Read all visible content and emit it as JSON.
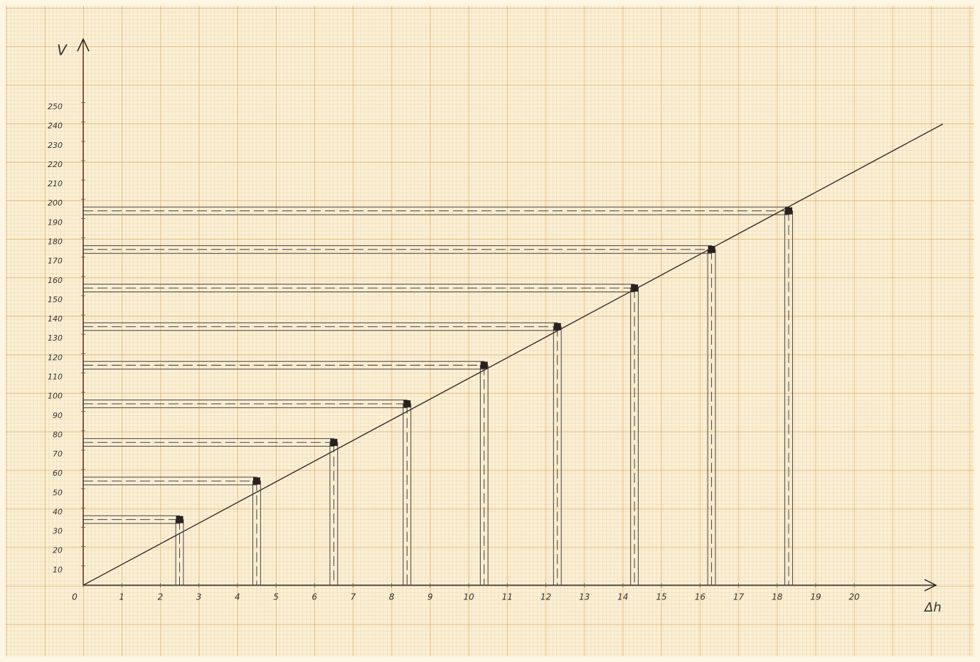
{
  "chart_data": {
    "type": "scatter",
    "x_label": "Δh",
    "y_label": "V",
    "x": [
      2.5,
      4.5,
      6.5,
      8.4,
      10.4,
      12.3,
      14.3,
      16.3,
      18.3
    ],
    "values": [
      34,
      54,
      74,
      94,
      114,
      134,
      154,
      174,
      194
    ],
    "x_error": 0.1,
    "y_error": 2,
    "fit_line": {
      "x": [
        0,
        22.3
      ],
      "values": [
        0,
        239
      ]
    },
    "color": "#2a2020",
    "xlim": [
      0,
      22.1
    ],
    "ylim": [
      0,
      283
    ],
    "xticks": [
      0,
      1,
      2,
      3,
      4,
      5,
      6,
      7,
      8,
      9,
      10,
      11,
      12,
      13,
      14,
      15,
      16,
      17,
      18,
      19,
      20
    ],
    "yticks": [
      10,
      20,
      30,
      40,
      50,
      60,
      70,
      80,
      90,
      100,
      110,
      120,
      130,
      140,
      150,
      160,
      170,
      180,
      190,
      200,
      210,
      220,
      230,
      240,
      250
    ]
  }
}
